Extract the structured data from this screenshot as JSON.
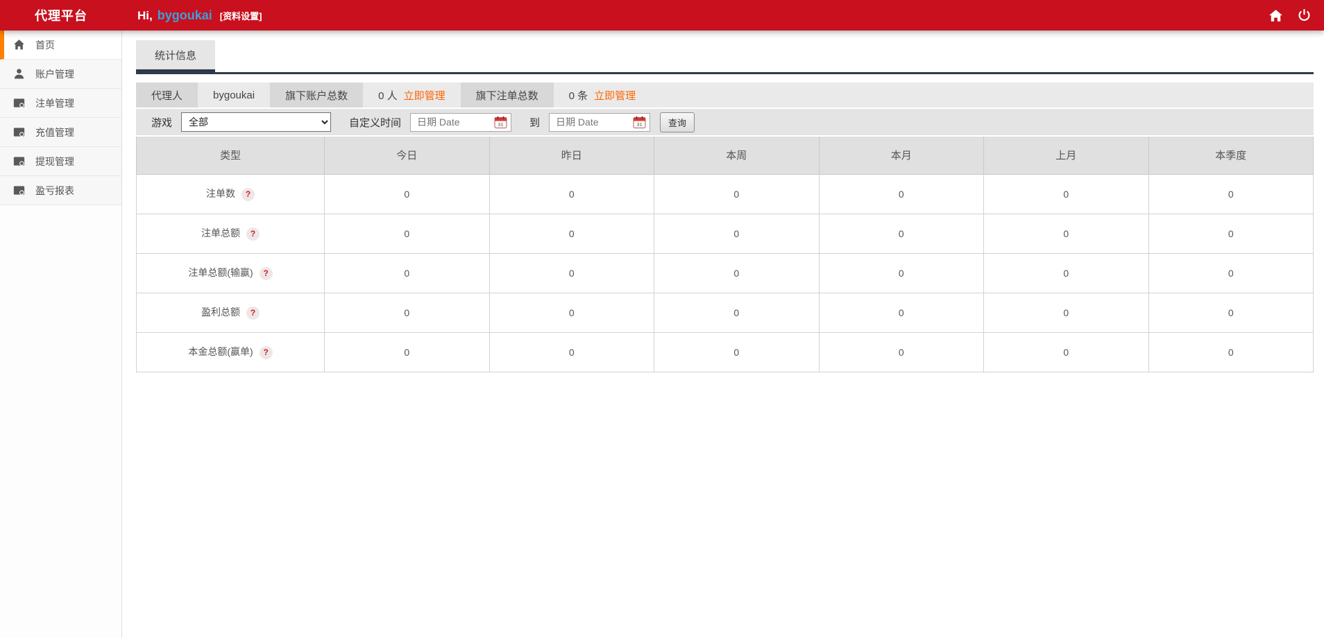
{
  "header": {
    "brand": "代理平台",
    "greeting_prefix": "Hi,",
    "username": "bygoukai",
    "profile_settings": "[资料设置]",
    "icons": [
      "home-icon",
      "power-icon"
    ],
    "colors": {
      "bar_red": "#c8101e",
      "username_blue": "#3aa0dc",
      "accent_orange": "#ff6600",
      "active_item_orange": "#ff8000",
      "tab_underline_navy": "#2e3a4c"
    }
  },
  "sidebar": {
    "items": [
      {
        "key": "home",
        "label": "首页",
        "icon": "home-icon",
        "active": true
      },
      {
        "key": "accounts",
        "label": "账户管理",
        "icon": "user-icon",
        "active": false
      },
      {
        "key": "orders",
        "label": "注单管理",
        "icon": "orders-icon",
        "active": false
      },
      {
        "key": "recharge",
        "label": "充值管理",
        "icon": "recharge-icon",
        "active": false
      },
      {
        "key": "withdraw",
        "label": "提现管理",
        "icon": "withdraw-icon",
        "active": false
      },
      {
        "key": "report",
        "label": "盈亏报表",
        "icon": "report-icon",
        "active": false
      }
    ]
  },
  "main": {
    "tab": "统计信息",
    "info_bar": [
      {
        "label": "代理人",
        "tone": "dark"
      },
      {
        "label": "bygoukai",
        "tone": "light"
      },
      {
        "label": "旗下账户总数",
        "tone": "dark"
      },
      {
        "label": "0 人",
        "link": "立即管理",
        "tone": "light"
      },
      {
        "label": "旗下注单总数",
        "tone": "dark"
      },
      {
        "label": "0 条",
        "link": "立即管理",
        "tone": "light",
        "fill": true
      }
    ],
    "filters": {
      "game_label": "游戏",
      "game_value": "全部",
      "custom_time_label": "自定义时间",
      "date_placeholder": "日期 Date",
      "to_label": "到",
      "search_button": "查询"
    },
    "table": {
      "columns": [
        "类型",
        "今日",
        "昨日",
        "本周",
        "本月",
        "上月",
        "本季度"
      ],
      "rows": [
        {
          "label": "注单数",
          "help": "?",
          "values": [
            "0",
            "0",
            "0",
            "0",
            "0",
            "0"
          ]
        },
        {
          "label": "注单总额",
          "help": "?",
          "values": [
            "0",
            "0",
            "0",
            "0",
            "0",
            "0"
          ]
        },
        {
          "label": "注单总额(输赢)",
          "help": "?",
          "values": [
            "0",
            "0",
            "0",
            "0",
            "0",
            "0"
          ]
        },
        {
          "label": "盈利总额",
          "help": "?",
          "values": [
            "0",
            "0",
            "0",
            "0",
            "0",
            "0"
          ]
        },
        {
          "label": "本金总额(赢单)",
          "help": "?",
          "values": [
            "0",
            "0",
            "0",
            "0",
            "0",
            "0"
          ]
        }
      ]
    }
  }
}
